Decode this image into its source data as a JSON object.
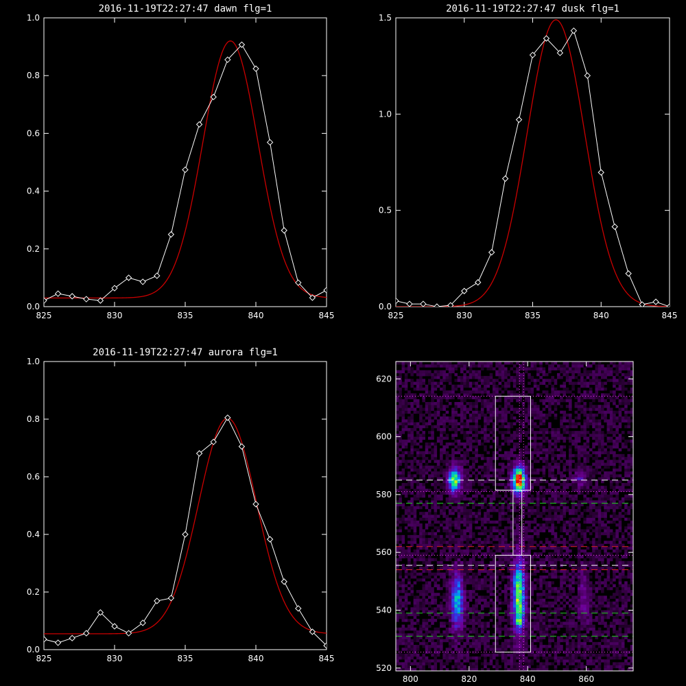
{
  "chart_data": [
    {
      "type": "line",
      "title": "2016-11-19T22:27:47 dawn flg=1",
      "xlim": [
        825,
        845
      ],
      "ylim": [
        0,
        1.0
      ],
      "x_ticks": [
        "825",
        "830",
        "835",
        "840",
        "845"
      ],
      "y_ticks": [
        "0.0",
        "0.2",
        "0.4",
        "0.6",
        "0.8",
        "1.0"
      ],
      "colors": {
        "data": "#ffffff",
        "fit": "#cc0000"
      },
      "series": [
        {
          "kind": "data",
          "x": [
            825,
            826,
            827,
            828,
            829,
            830,
            831,
            832,
            833,
            834,
            835,
            836,
            837,
            838,
            839,
            840,
            841,
            842,
            843,
            844,
            845
          ],
          "y": [
            0.021,
            0.045,
            0.036,
            0.026,
            0.021,
            0.064,
            0.1,
            0.086,
            0.107,
            0.25,
            0.474,
            0.631,
            0.726,
            0.855,
            0.907,
            0.824,
            0.569,
            0.264,
            0.083,
            0.031,
            0.057
          ]
        },
        {
          "kind": "fit",
          "gaussian": {
            "amplitude": 0.89,
            "center": 838.2,
            "sigma": 1.95,
            "offset": 0.03
          }
        }
      ]
    },
    {
      "type": "line",
      "title": "2016-11-19T22:27:47 dusk flg=1",
      "xlim": [
        825,
        845
      ],
      "ylim": [
        0,
        1.5
      ],
      "x_ticks": [
        "825",
        "830",
        "835",
        "840",
        "845"
      ],
      "y_ticks": [
        "0.0",
        "0.5",
        "1.0",
        "1.5"
      ],
      "colors": {
        "data": "#ffffff",
        "fit": "#cc0000"
      },
      "series": [
        {
          "kind": "data",
          "x": [
            825,
            826,
            827,
            828,
            829,
            830,
            831,
            832,
            833,
            834,
            835,
            836,
            837,
            838,
            839,
            840,
            841,
            842,
            843,
            844,
            845
          ],
          "y": [
            0.03,
            0.014,
            0.014,
            0.0,
            0.007,
            0.081,
            0.126,
            0.282,
            0.665,
            0.971,
            1.307,
            1.393,
            1.318,
            1.433,
            1.2,
            0.697,
            0.415,
            0.172,
            0.011,
            0.025,
            0.0
          ]
        },
        {
          "kind": "fit",
          "gaussian": {
            "amplitude": 1.49,
            "center": 836.7,
            "sigma": 2.1,
            "offset": 0.0
          }
        }
      ]
    },
    {
      "type": "line",
      "title": "2016-11-19T22:27:47 aurora flg=1",
      "xlim": [
        825,
        845
      ],
      "ylim": [
        0,
        1.0
      ],
      "x_ticks": [
        "825",
        "830",
        "835",
        "840",
        "845"
      ],
      "y_ticks": [
        "0.0",
        "0.2",
        "0.4",
        "0.6",
        "0.8",
        "1.0"
      ],
      "colors": {
        "data": "#ffffff",
        "fit": "#cc0000"
      },
      "series": [
        {
          "kind": "data",
          "x": [
            825,
            826,
            827,
            828,
            829,
            830,
            831,
            832,
            833,
            834,
            835,
            836,
            837,
            838,
            839,
            840,
            841,
            842,
            843,
            844,
            845
          ],
          "y": [
            0.036,
            0.024,
            0.04,
            0.057,
            0.129,
            0.081,
            0.057,
            0.093,
            0.169,
            0.179,
            0.4,
            0.681,
            0.721,
            0.805,
            0.705,
            0.505,
            0.383,
            0.236,
            0.143,
            0.062,
            0.014
          ]
        },
        {
          "kind": "fit",
          "gaussian": {
            "amplitude": 0.748,
            "center": 838.0,
            "sigma": 2.05,
            "offset": 0.055
          }
        }
      ]
    },
    {
      "type": "heatmap",
      "title": "",
      "xlim": [
        795,
        876
      ],
      "ylim": [
        519,
        626
      ],
      "x_ticks": [
        "800",
        "820",
        "840",
        "860"
      ],
      "y_ticks": [
        "520",
        "540",
        "560",
        "580",
        "600",
        "620"
      ],
      "blobs": [
        {
          "x": 815,
          "y": 585,
          "sx": 1.6,
          "sy": 3.0,
          "amp": 0.72
        },
        {
          "x": 837,
          "y": 585,
          "sx": 1.6,
          "sy": 3.2,
          "amp": 1.0
        },
        {
          "x": 858,
          "y": 586,
          "sx": 1.4,
          "sy": 2.0,
          "amp": 0.28
        },
        {
          "x": 816,
          "y": 543,
          "sx": 1.5,
          "sy": 7.0,
          "amp": 0.55
        },
        {
          "x": 837,
          "y": 545,
          "sx": 1.5,
          "sy": 9.0,
          "amp": 0.75
        },
        {
          "x": 837,
          "y": 536,
          "sx": 0.8,
          "sy": 1.0,
          "amp": 0.3
        },
        {
          "x": 859,
          "y": 544,
          "sx": 1.4,
          "sy": 7.0,
          "amp": 0.2
        }
      ],
      "boxes": [
        {
          "x0": 829,
          "x1": 841,
          "y0": 581.5,
          "y1": 614
        },
        {
          "x0": 829,
          "x1": 841,
          "y0": 525.5,
          "y1": 559
        },
        {
          "x0": 835,
          "x1": 838,
          "y0": 559,
          "y1": 581.5
        }
      ],
      "hlines": [
        {
          "y": 614,
          "color": "#ff44ff",
          "style": "dotted"
        },
        {
          "y": 581,
          "color": "#ff44ff",
          "style": "dotted"
        },
        {
          "y": 559,
          "color": "#ff44ff",
          "style": "dotted"
        },
        {
          "y": 525.5,
          "color": "#ff44ff",
          "style": "dotted"
        },
        {
          "y": 585,
          "color": "#ffffff",
          "style": "dashed"
        },
        {
          "y": 577,
          "color": "#22cc22",
          "style": "dashed"
        },
        {
          "y": 562,
          "color": "#dd2222",
          "style": "dashed"
        },
        {
          "y": 555.5,
          "color": "#ffffff",
          "style": "dashed"
        },
        {
          "y": 554,
          "color": "#dd2222",
          "style": "dashed"
        },
        {
          "y": 539,
          "color": "#22cc22",
          "style": "dashed"
        },
        {
          "y": 531,
          "color": "#22cc22",
          "style": "dashed"
        }
      ],
      "vlines": [
        {
          "x": 837.2,
          "color": "#ff44ff",
          "style": "dotted"
        },
        {
          "x": 838.6,
          "color": "#ff44ff",
          "style": "dotted"
        }
      ]
    }
  ]
}
